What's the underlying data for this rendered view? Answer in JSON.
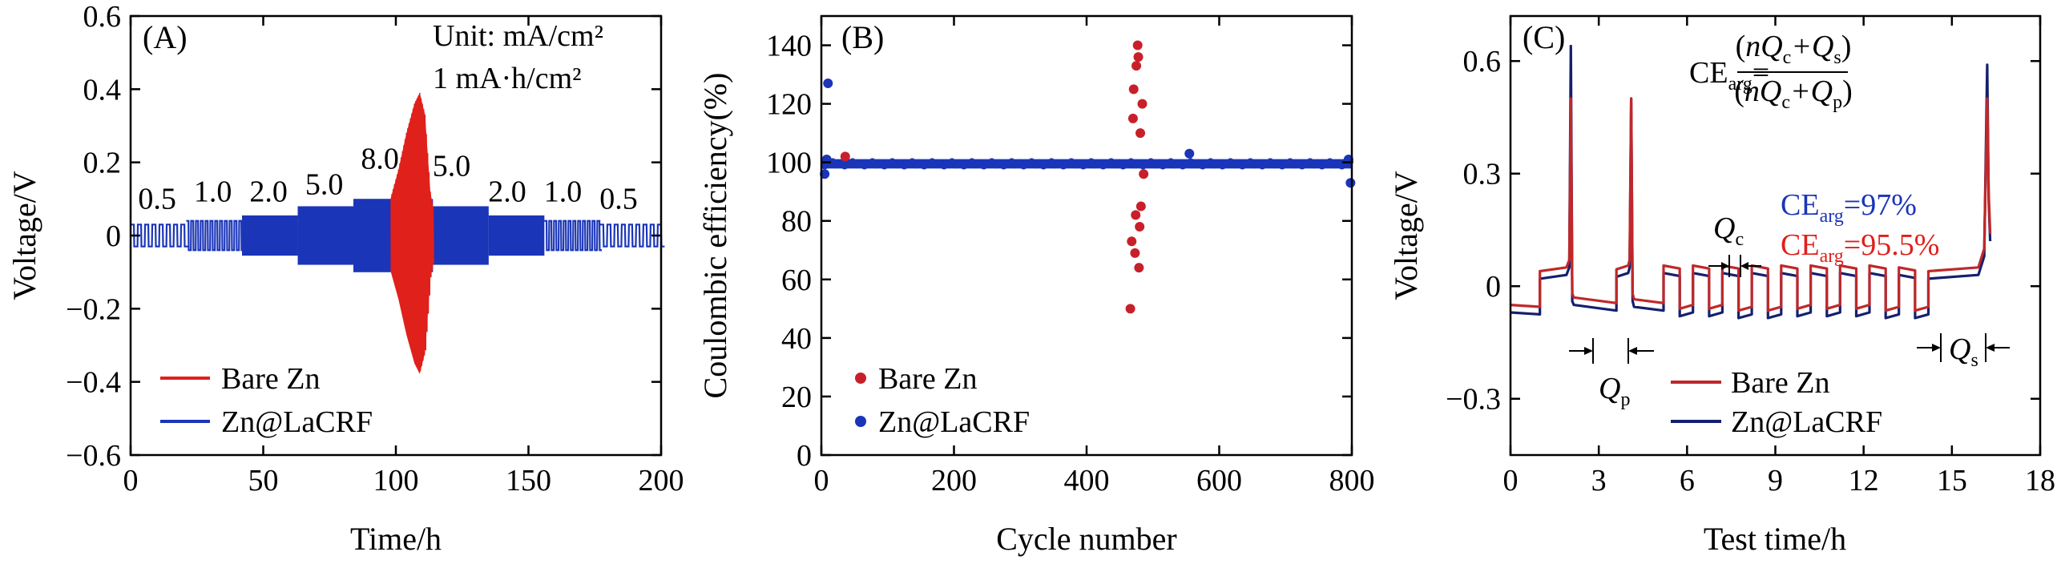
{
  "chart_data": [
    {
      "id": "A",
      "type": "line",
      "panel_label": "(A)",
      "xlabel": "Time/h",
      "ylabel": "Voltage/V",
      "xlim": [
        0,
        200
      ],
      "ylim": [
        -0.6,
        0.6
      ],
      "xticks": [
        0,
        50,
        100,
        150,
        200
      ],
      "yticks": [
        -0.6,
        -0.4,
        -0.2,
        0,
        0.2,
        0.4,
        0.6
      ],
      "ytick_labels": [
        "−0.6",
        "−0.4",
        "−0.2",
        "0",
        "0.2",
        "0.4",
        "0.6"
      ],
      "annotations": {
        "unit": "Unit: mA/cm²",
        "capacity": "1 mA·h/cm²"
      },
      "rate_labels": [
        {
          "text": "0.5",
          "x": 10,
          "y": 0.06
        },
        {
          "text": "1.0",
          "x": 31,
          "y": 0.08
        },
        {
          "text": "2.0",
          "x": 52,
          "y": 0.08
        },
        {
          "text": "5.0",
          "x": 73,
          "y": 0.1
        },
        {
          "text": "8.0",
          "x": 94,
          "y": 0.17
        },
        {
          "text": "5.0",
          "x": 121,
          "y": 0.15
        },
        {
          "text": "2.0",
          "x": 142,
          "y": 0.08
        },
        {
          "text": "1.0",
          "x": 163,
          "y": 0.08
        },
        {
          "text": "0.5",
          "x": 184,
          "y": 0.06
        }
      ],
      "series": [
        {
          "name": "Bare Zn",
          "color": "#e0201b",
          "segments": [
            {
              "x0": 98,
              "x1": 114,
              "amplitude_profile": [
                [
                  98,
                  0.1
                ],
                [
                  101,
                  0.18
                ],
                [
                  104,
                  0.28
                ],
                [
                  107,
                  0.36
                ],
                [
                  109,
                  0.39
                ],
                [
                  111,
                  0.33
                ],
                [
                  113,
                  0.12
                ],
                [
                  114,
                  0.08
                ]
              ]
            }
          ]
        },
        {
          "name": "Zn@LaCRF",
          "color": "#1a35b8",
          "segments": [
            {
              "x0": 0,
              "x1": 21,
              "amplitude": 0.03,
              "rate": "0.5"
            },
            {
              "x0": 21,
              "x1": 42,
              "amplitude": 0.04,
              "rate": "1.0"
            },
            {
              "x0": 42,
              "x1": 63,
              "amplitude": 0.055,
              "rate": "2.0"
            },
            {
              "x0": 63,
              "x1": 84,
              "amplitude": 0.08,
              "rate": "5.0"
            },
            {
              "x0": 84,
              "x1": 114,
              "amplitude": 0.1,
              "rate": "8.0"
            },
            {
              "x0": 114,
              "x1": 135,
              "amplitude": 0.08,
              "rate": "5.0"
            },
            {
              "x0": 135,
              "x1": 156,
              "amplitude": 0.055,
              "rate": "2.0"
            },
            {
              "x0": 156,
              "x1": 177,
              "amplitude": 0.04,
              "rate": "1.0"
            },
            {
              "x0": 177,
              "x1": 200,
              "amplitude": 0.03,
              "rate": "0.5"
            }
          ]
        }
      ],
      "legend": [
        "Bare Zn",
        "Zn@LaCRF"
      ],
      "legend_position": "bottom-left"
    },
    {
      "id": "B",
      "type": "scatter",
      "panel_label": "(B)",
      "xlabel": "Cycle number",
      "ylabel": "Coulombic efficiency(%)",
      "xlim": [
        0,
        800
      ],
      "ylim": [
        0,
        150
      ],
      "xticks": [
        0,
        200,
        400,
        600,
        800
      ],
      "yticks": [
        0,
        20,
        40,
        60,
        80,
        100,
        120,
        140
      ],
      "series": [
        {
          "name": "Bare Zn",
          "color": "#c8202a",
          "points": [
            [
              36,
              102
            ],
            [
              466,
              50
            ],
            [
              468,
              73
            ],
            [
              470,
              115
            ],
            [
              471,
              125
            ],
            [
              473,
              69
            ],
            [
              474,
              82
            ],
            [
              475,
              133
            ],
            [
              477,
              140
            ],
            [
              478,
              136
            ],
            [
              479,
              64
            ],
            [
              480,
              78
            ],
            [
              481,
              110
            ],
            [
              482,
              85
            ],
            [
              484,
              120
            ],
            [
              486,
              96
            ]
          ]
        },
        {
          "name": "Zn@LaCRF",
          "color": "#1a35b8",
          "baseline": 99.5,
          "x_range": [
            5,
            800
          ],
          "outliers": [
            [
              10,
              127
            ],
            [
              5,
              96
            ],
            [
              8,
              101
            ],
            [
              555,
              103
            ],
            [
              795,
              101
            ],
            [
              798,
              93
            ]
          ]
        }
      ],
      "legend": [
        "Bare Zn",
        "Zn@LaCRF"
      ],
      "legend_position": "bottom-left"
    },
    {
      "id": "C",
      "type": "line",
      "panel_label": "(C)",
      "xlabel": "Test time/h",
      "ylabel": "Voltage/V",
      "xlim": [
        0,
        18
      ],
      "ylim": [
        -0.45,
        0.72
      ],
      "xticks": [
        0,
        3,
        6,
        9,
        12,
        15,
        18
      ],
      "yticks": [
        -0.3,
        0,
        0.3,
        0.6
      ],
      "ytick_labels": [
        "−0.3",
        "0",
        "0.3",
        "0.6"
      ],
      "formula": {
        "lhs": "CE",
        "lhs_sub": "arg",
        "num_open": "(",
        "num_n": "nQ",
        "num_c": "c",
        "num_plus": "+Q",
        "num_s": "s",
        "num_close": ")",
        "den_open": "(",
        "den_n": "nQ",
        "den_c": "c",
        "den_plus": "+Q",
        "den_p": "p",
        "den_close": ")"
      },
      "ce_values": [
        {
          "label": "CE",
          "sub": "arg",
          "value": "=97%",
          "color": "#1a35b8"
        },
        {
          "label": "CE",
          "sub": "arg",
          "value": "=95.5%",
          "color": "#e0201b"
        }
      ],
      "markers": {
        "qc": {
          "label": "Q",
          "sub": "c"
        },
        "qp": {
          "label": "Q",
          "sub": "p"
        },
        "qs": {
          "label": "Q",
          "sub": "s"
        }
      },
      "series": [
        {
          "name": "Bare Zn",
          "color": "#c0282a",
          "spikes": [
            [
              2.05,
              0.5
            ],
            [
              4.1,
              0.5
            ],
            [
              16.2,
              0.5
            ]
          ]
        },
        {
          "name": "Zn@LaCRF",
          "color": "#14206e",
          "spikes": [
            [
              2.05,
              0.66
            ],
            [
              4.1,
              0.52
            ],
            [
              16.2,
              0.61
            ]
          ]
        }
      ],
      "legend": [
        "Bare Zn",
        "Zn@LaCRF"
      ],
      "legend_position": "bottom-right"
    }
  ]
}
